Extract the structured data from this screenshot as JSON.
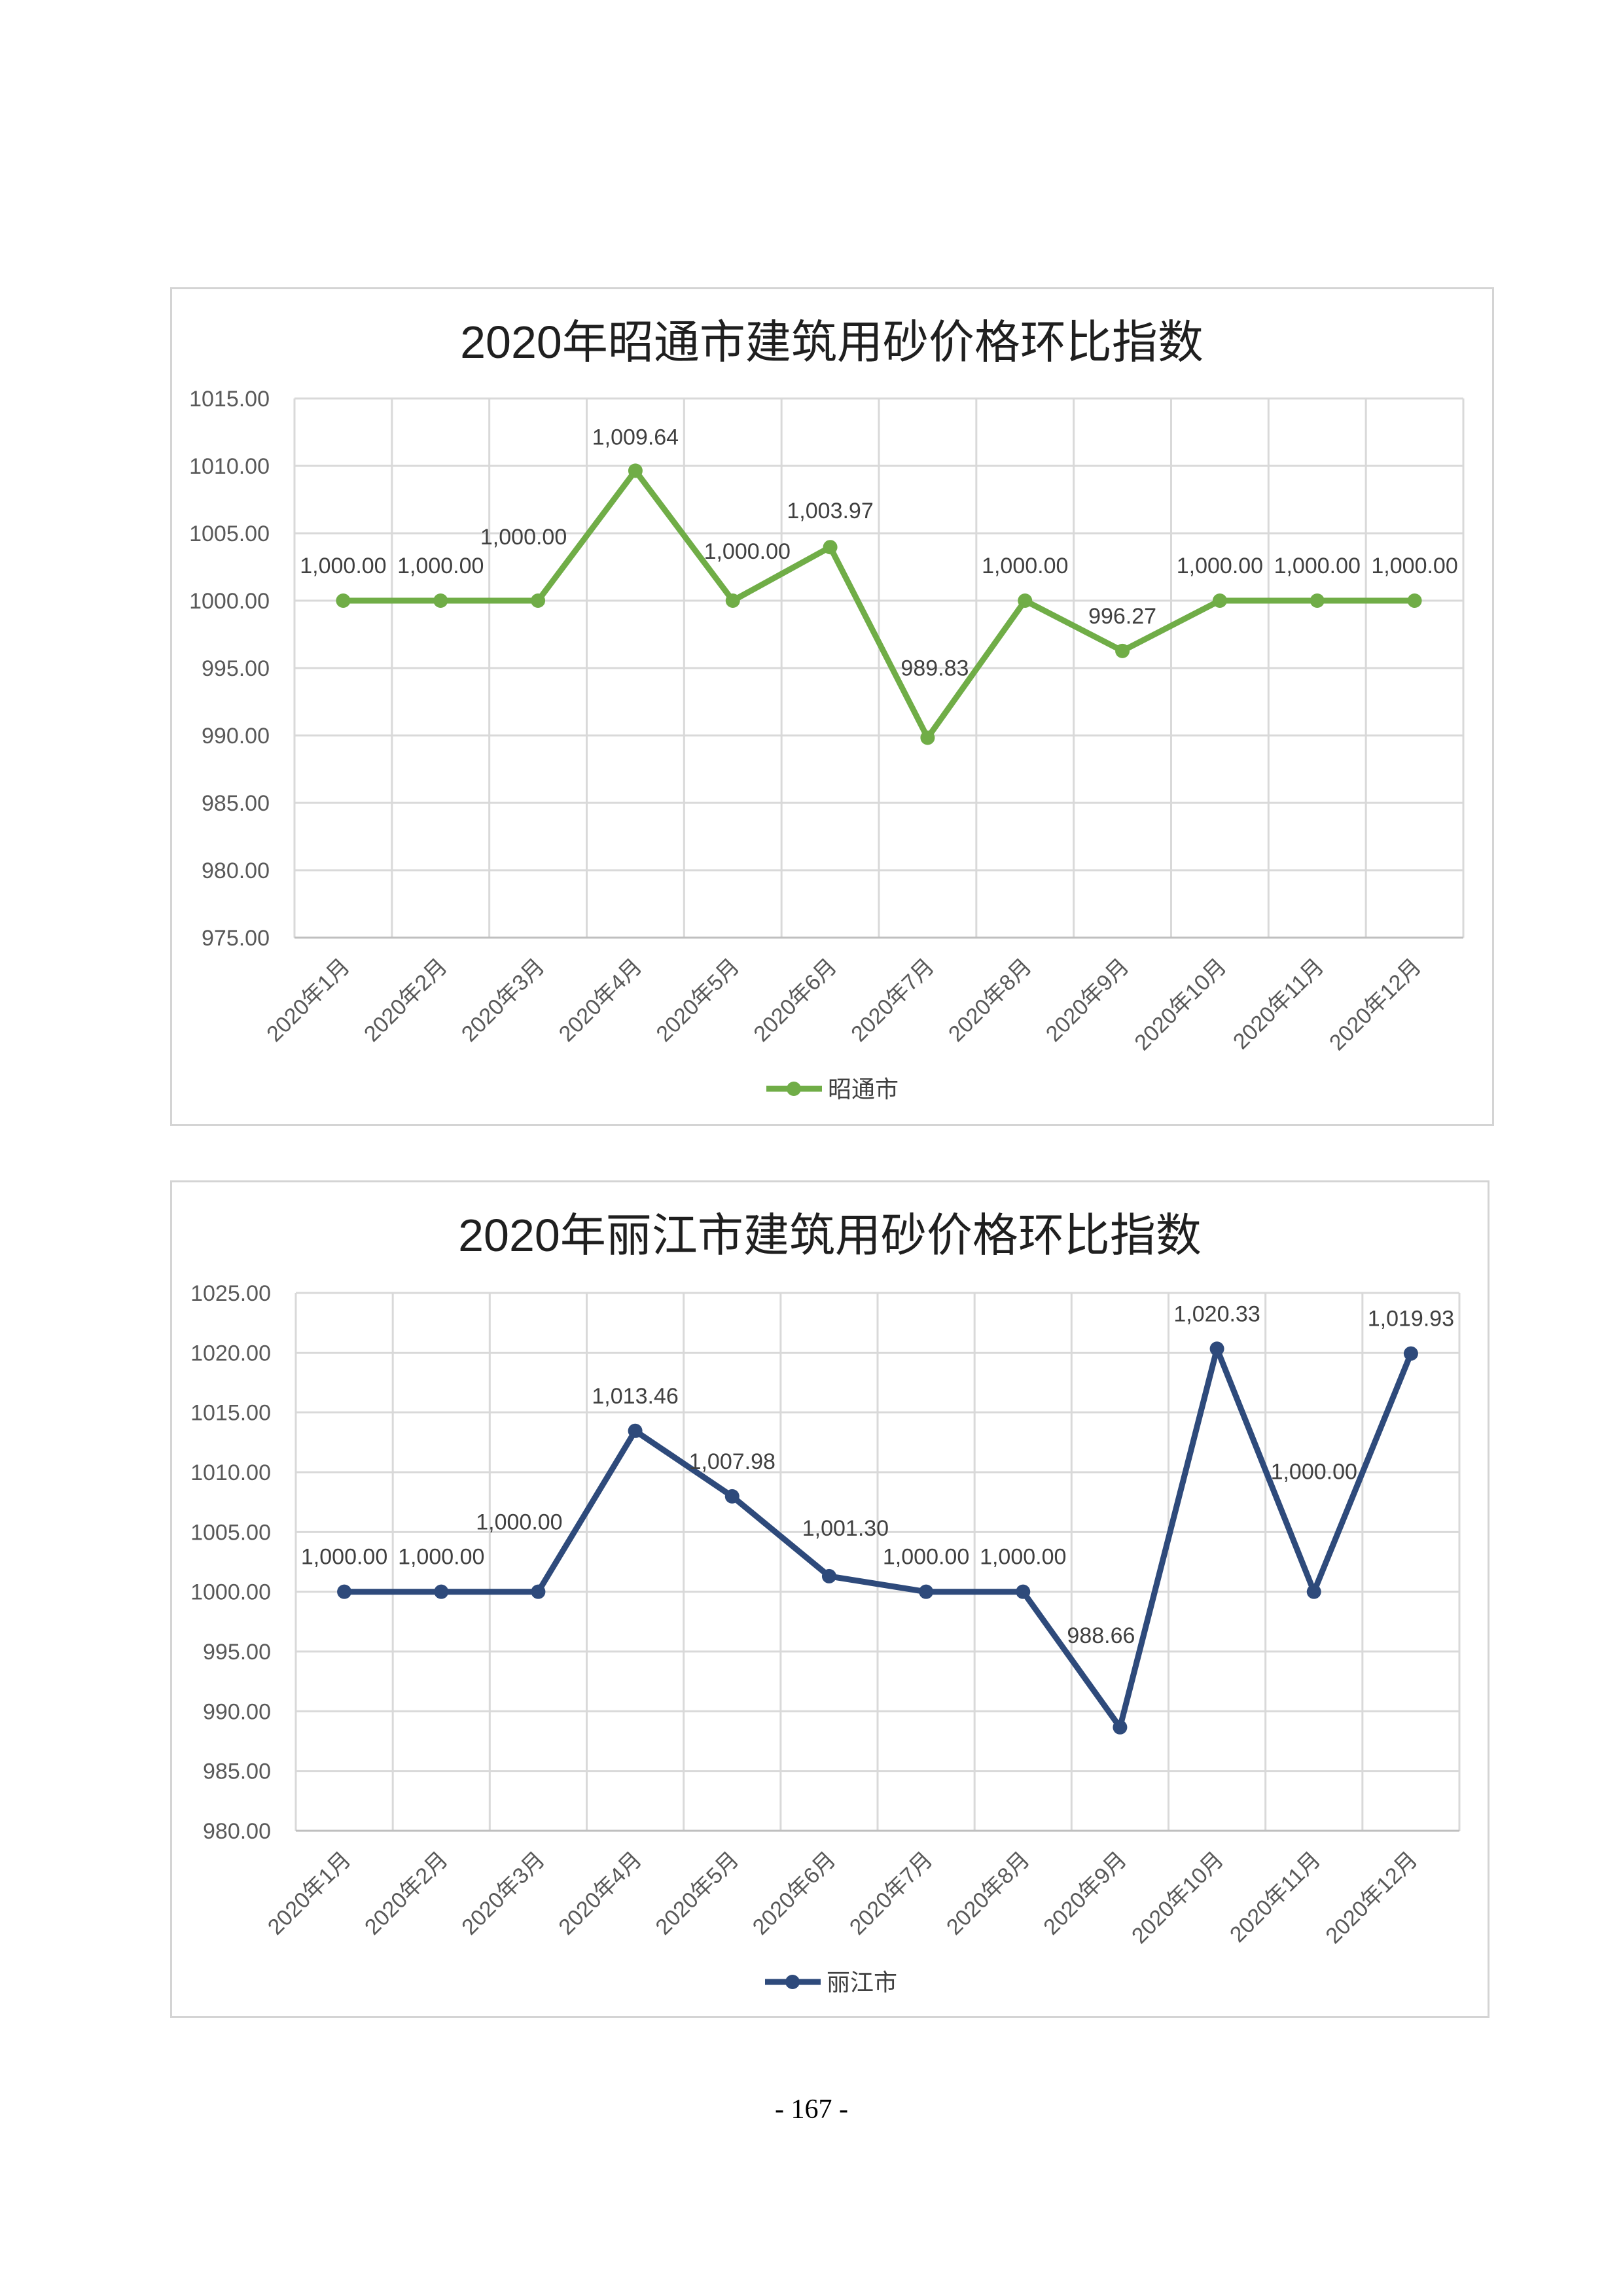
{
  "page": {
    "page_number": "- 167 -"
  },
  "chart_data": [
    {
      "type": "line",
      "title": "2020年昭通市建筑用砂价格环比指数",
      "categories": [
        "2020年1月",
        "2020年2月",
        "2020年3月",
        "2020年4月",
        "2020年5月",
        "2020年6月",
        "2020年7月",
        "2020年8月",
        "2020年9月",
        "2020年10月",
        "2020年11月",
        "2020年12月"
      ],
      "series": [
        {
          "name": "昭通市",
          "color": "#70AD47",
          "values": [
            1000.0,
            1000.0,
            1000.0,
            1009.64,
            1000.0,
            1003.97,
            989.83,
            1000.0,
            996.27,
            1000.0,
            1000.0,
            1000.0
          ]
        }
      ],
      "ylim": [
        975,
        1015
      ],
      "ytick_labels": [
        "975.00",
        "980.00",
        "985.00",
        "990.00",
        "995.00",
        "1000.00",
        "1005.00",
        "1010.00",
        "1015.00"
      ],
      "data_labels": true,
      "grid": true,
      "legend": "bottom"
    },
    {
      "type": "line",
      "title": "2020年丽江市建筑用砂价格环比指数",
      "categories": [
        "2020年1月",
        "2020年2月",
        "2020年3月",
        "2020年4月",
        "2020年5月",
        "2020年6月",
        "2020年7月",
        "2020年8月",
        "2020年9月",
        "2020年10月",
        "2020年11月",
        "2020年12月"
      ],
      "series": [
        {
          "name": "丽江市",
          "color": "#2E4A7B",
          "values": [
            1000.0,
            1000.0,
            1000.0,
            1013.46,
            1007.98,
            1001.3,
            1000.0,
            1000.0,
            988.66,
            1020.33,
            1000.0,
            1019.93
          ]
        }
      ],
      "ylim": [
        980,
        1025
      ],
      "ytick_labels": [
        "980.00",
        "985.00",
        "990.00",
        "995.00",
        "1000.00",
        "1005.00",
        "1010.00",
        "1015.00",
        "1020.00",
        "1025.00"
      ],
      "data_labels": true,
      "grid": true,
      "legend": "bottom"
    }
  ]
}
